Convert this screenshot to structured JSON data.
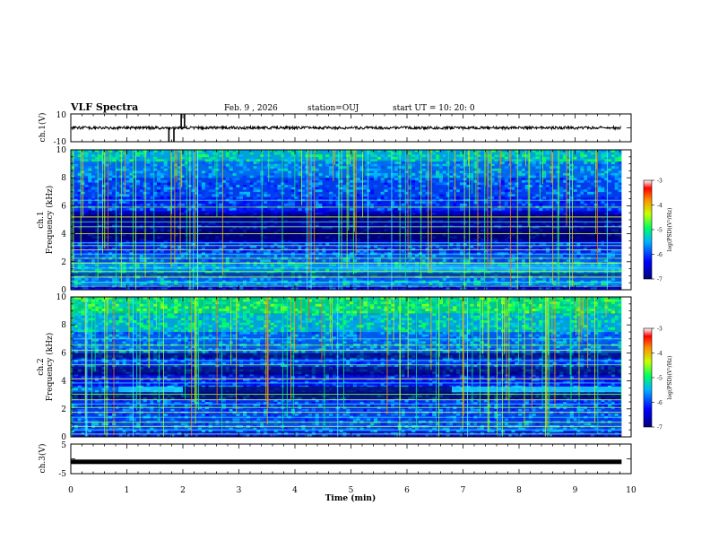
{
  "header": {
    "title": "VLF Spectra",
    "date": "Feb. 9 , 2026",
    "station": "station=OUJ",
    "start": "start UT = 10: 20: 0"
  },
  "chart_data": [
    {
      "type": "line",
      "panel": "ch1-waveform",
      "ylabel": "ch.1(V)",
      "ylim": [
        -10,
        10
      ],
      "yticks": [
        "10",
        "-10"
      ],
      "baseline": 0,
      "spikes": [
        {
          "t": 1.75,
          "v": -10
        },
        {
          "t": 1.84,
          "v": -10
        },
        {
          "t": 1.97,
          "v": 10
        },
        {
          "t": 2.03,
          "v": 10
        }
      ]
    },
    {
      "type": "heatmap",
      "panel": "ch1-spectrogram",
      "ylabel1": "ch.1",
      "ylabel2": "Frequency (kHz)",
      "ylim": [
        0,
        10
      ],
      "yticks": [
        "0",
        "2",
        "4",
        "6",
        "8",
        "10"
      ],
      "xlim": [
        0,
        9.83
      ],
      "colorbar": {
        "label": "log(PSD)(V²/Hz)",
        "range": [
          -7,
          -3
        ],
        "ticks": [
          "-3",
          "-4",
          "-5",
          "-6",
          "-7"
        ]
      }
    },
    {
      "type": "heatmap",
      "panel": "ch2-spectrogram",
      "ylabel1": "ch.2",
      "ylabel2": "Frequency (kHz)",
      "ylim": [
        0,
        10
      ],
      "yticks": [
        "0",
        "2",
        "4",
        "6",
        "8",
        "10"
      ],
      "xlim": [
        0,
        9.83
      ],
      "colorbar": {
        "label": "log(PSD)(V²/Hz)",
        "range": [
          -7,
          -3
        ],
        "ticks": [
          "-3",
          "-4",
          "-5",
          "-6",
          "-7"
        ]
      }
    },
    {
      "type": "line",
      "panel": "ch3-waveform",
      "ylabel": "ch.3(V)",
      "ylim": [
        -5,
        5
      ],
      "yticks": [
        "5",
        "-5"
      ],
      "level": -1
    }
  ],
  "xaxis": {
    "label": "Time (min)",
    "ticks": [
      "0",
      "1",
      "2",
      "3",
      "4",
      "5",
      "6",
      "7",
      "8",
      "9",
      "10"
    ],
    "range": [
      0,
      10
    ]
  }
}
